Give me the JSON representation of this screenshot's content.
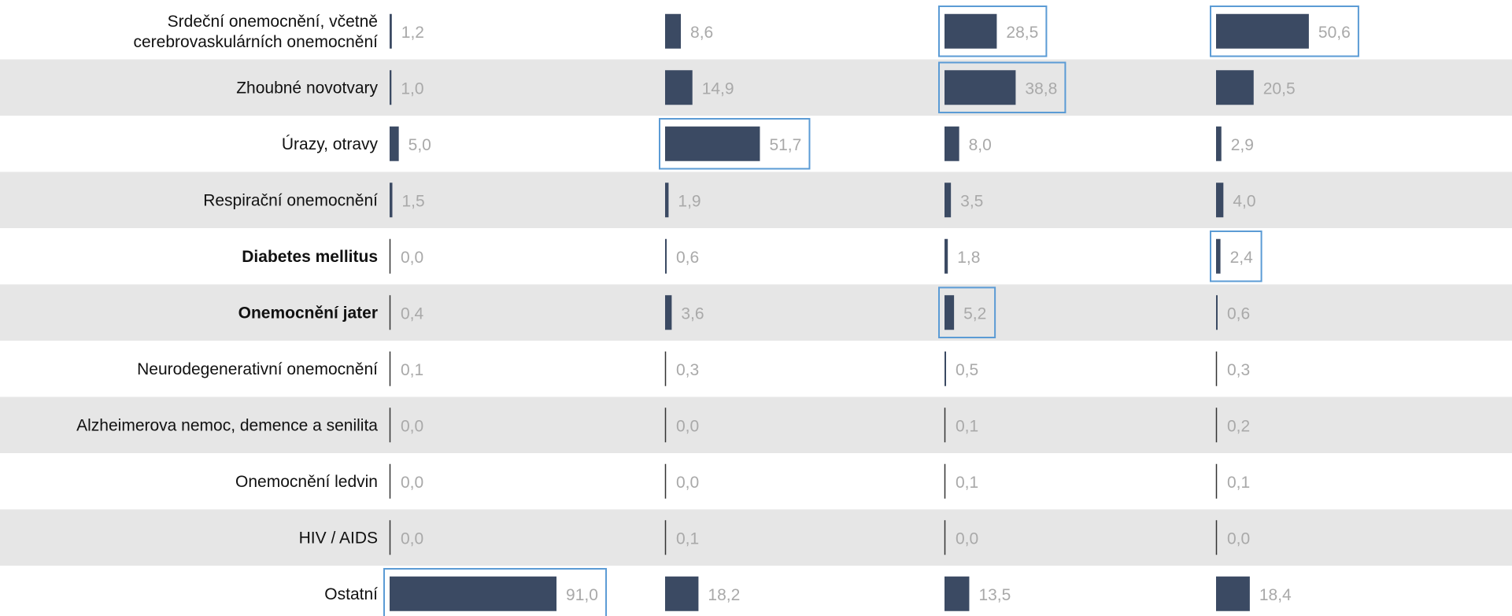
{
  "chart_data": {
    "type": "bar",
    "orientation": "horizontal",
    "panels": 4,
    "categories": [
      [
        "Srdeční onemocnění, včetně",
        "cerebrovaskulárních onemocnění"
      ],
      [
        "Zhoubné novotvary"
      ],
      [
        "Úrazy, otravy"
      ],
      [
        "Respirační onemocnění"
      ],
      [
        "Diabetes mellitus"
      ],
      [
        "Onemocnění jater"
      ],
      [
        "Neurodegenerativní onemocnění"
      ],
      [
        "Alzheimerova nemoc, demence a senilita"
      ],
      [
        "Onemocnění ledvin"
      ],
      [
        "HIV / AIDS"
      ],
      [
        "Ostatní"
      ]
    ],
    "bold_categories": [
      4,
      5
    ],
    "series": [
      {
        "values": [
          1.2,
          1.0,
          5.0,
          1.5,
          0.0,
          0.4,
          0.1,
          0.0,
          0.0,
          0.0,
          91.0
        ],
        "labels": [
          "1,2",
          "1,0",
          "5,0",
          "1,5",
          "0,0",
          "0,4",
          "0,1",
          "0,0",
          "0,0",
          "0,0",
          "91,0"
        ],
        "highlighted": [
          10
        ]
      },
      {
        "values": [
          8.6,
          14.9,
          51.7,
          1.9,
          0.6,
          3.6,
          0.3,
          0.0,
          0.0,
          0.1,
          18.2
        ],
        "labels": [
          "8,6",
          "14,9",
          "51,7",
          "1,9",
          "0,6",
          "3,6",
          "0,3",
          "0,0",
          "0,0",
          "0,1",
          "18,2"
        ],
        "highlighted": [
          2
        ]
      },
      {
        "values": [
          28.5,
          38.8,
          8.0,
          3.5,
          1.8,
          5.2,
          0.5,
          0.1,
          0.1,
          0.0,
          13.5
        ],
        "labels": [
          "28,5",
          "38,8",
          "8,0",
          "3,5",
          "1,8",
          "5,2",
          "0,5",
          "0,1",
          "0,1",
          "0,0",
          "13,5"
        ],
        "highlighted": [
          0,
          1,
          5
        ]
      },
      {
        "values": [
          50.6,
          20.5,
          2.9,
          4.0,
          2.4,
          0.6,
          0.3,
          0.2,
          0.1,
          0.0,
          18.4
        ],
        "labels": [
          "50,6",
          "20,5",
          "2,9",
          "4,0",
          "2,4",
          "0,6",
          "0,3",
          "0,2",
          "0,1",
          "0,0",
          "18,4"
        ],
        "highlighted": [
          0,
          4
        ]
      }
    ],
    "xlim": [
      0,
      100
    ],
    "colors": {
      "bar": "#3b4a63",
      "value_text": "#a9a9a9",
      "row_band": "#e6e6e6",
      "highlight_box": "#5b9bd5",
      "axis_line": "#333333"
    }
  }
}
